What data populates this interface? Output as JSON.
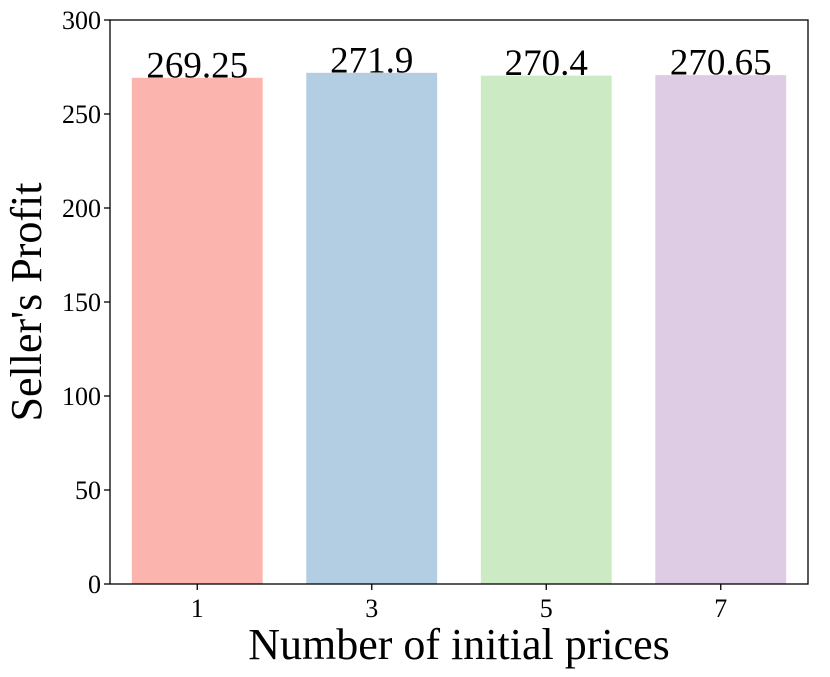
{
  "chart_data": {
    "type": "bar",
    "title": "",
    "xlabel": "Number of initial prices",
    "ylabel": "Seller's Profit",
    "categories": [
      "1",
      "3",
      "5",
      "7"
    ],
    "values": [
      269.25,
      271.9,
      270.4,
      270.65
    ],
    "value_labels": [
      "269.25",
      "271.9",
      "270.4",
      "270.65"
    ],
    "colors": [
      "#fbb4ae",
      "#b3cde3",
      "#ccebc5",
      "#decbe4"
    ],
    "ylim": [
      0,
      300
    ],
    "yticks": [
      0,
      50,
      100,
      150,
      200,
      250,
      300
    ],
    "ytick_labels": [
      "0",
      "50",
      "100",
      "150",
      "200",
      "250",
      "300"
    ],
    "grid": false,
    "legend": "none"
  }
}
